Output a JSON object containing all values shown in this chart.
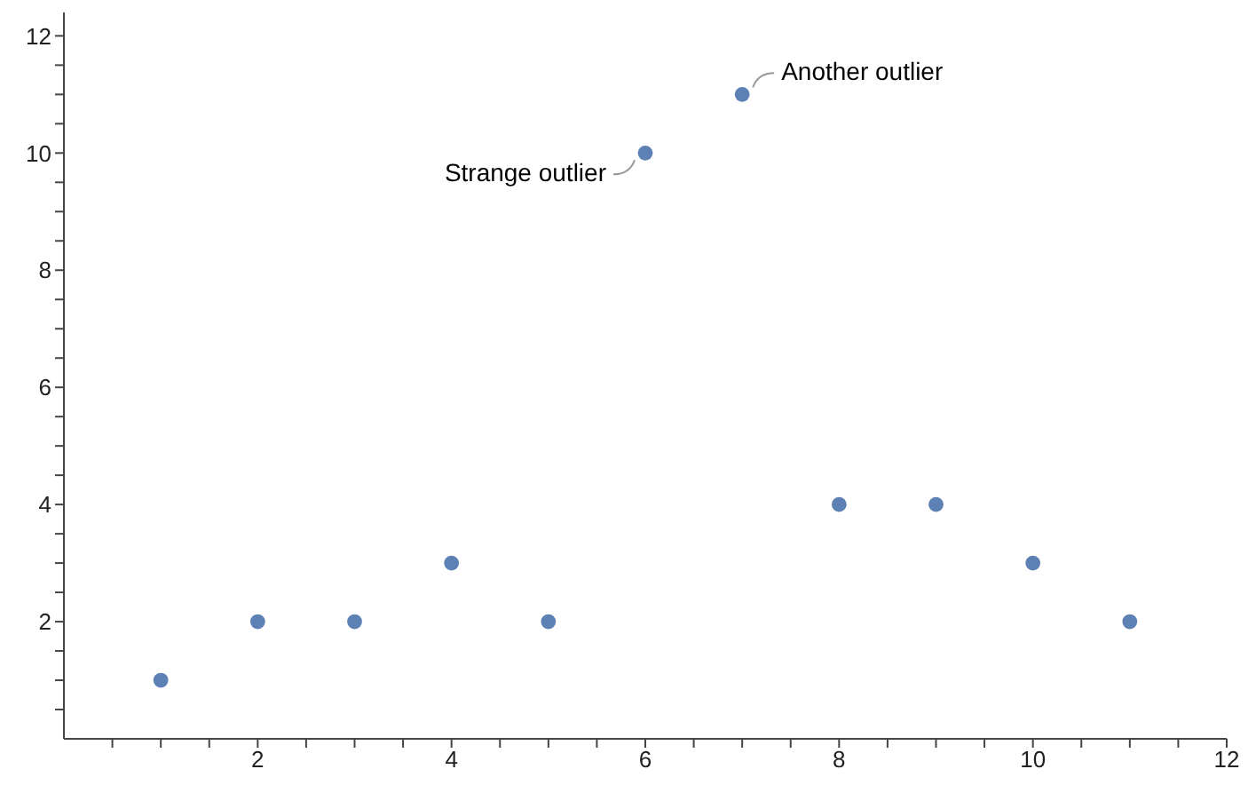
{
  "chart_data": {
    "type": "scatter",
    "x": [
      1,
      2,
      3,
      4,
      5,
      6,
      7,
      8,
      9,
      10,
      11
    ],
    "series": [
      {
        "color": "#5e81b5",
        "values": [
          1,
          2,
          2,
          3,
          2,
          10,
          11,
          4,
          4,
          3,
          2
        ]
      }
    ],
    "xlim": [
      0,
      12
    ],
    "ylim": [
      0,
      12.4
    ],
    "xticks": [
      {
        "value": 0.5,
        "label": null
      },
      {
        "value": 1,
        "label": null
      },
      {
        "value": 1.5,
        "label": null
      },
      2,
      {
        "value": 2.5,
        "label": null
      },
      {
        "value": 3,
        "label": null
      },
      {
        "value": 3.5,
        "label": null
      },
      4,
      {
        "value": 4.5,
        "label": null
      },
      {
        "value": 5,
        "label": null
      },
      {
        "value": 5.5,
        "label": null
      },
      6,
      {
        "value": 6.5,
        "label": null
      },
      {
        "value": 7,
        "label": null
      },
      {
        "value": 7.5,
        "label": null
      },
      8,
      {
        "value": 8.5,
        "label": null
      },
      {
        "value": 9,
        "label": null
      },
      {
        "value": 9.5,
        "label": null
      },
      10,
      {
        "value": 10.5,
        "label": null
      },
      {
        "value": 11,
        "label": null
      },
      {
        "value": 11.5,
        "label": null
      },
      12
    ],
    "yticks": [
      {
        "value": 0.5,
        "label": null
      },
      {
        "value": 1,
        "label": null
      },
      {
        "value": 1.5,
        "label": null
      },
      2,
      {
        "value": 2.5,
        "label": null
      },
      {
        "value": 3,
        "label": null
      },
      {
        "value": 3.5,
        "label": null
      },
      4,
      {
        "value": 4.5,
        "label": null
      },
      {
        "value": 5,
        "label": null
      },
      {
        "value": 5.5,
        "label": null
      },
      6,
      {
        "value": 6.5,
        "label": null
      },
      {
        "value": 7,
        "label": null
      },
      {
        "value": 7.5,
        "label": null
      },
      8,
      {
        "value": 8.5,
        "label": null
      },
      {
        "value": 9,
        "label": null
      },
      {
        "value": 9.5,
        "label": null
      },
      10,
      {
        "value": 10.5,
        "label": null
      },
      {
        "value": 11,
        "label": null
      },
      {
        "value": 11.5,
        "label": null
      },
      12
    ],
    "marker": "circle",
    "grid": false,
    "legend": false,
    "annotations": [
      {
        "text": "Strange outlier",
        "x": 6,
        "y": 10
      },
      {
        "text": "Another outlier",
        "x": 7,
        "y": 11
      }
    ]
  }
}
